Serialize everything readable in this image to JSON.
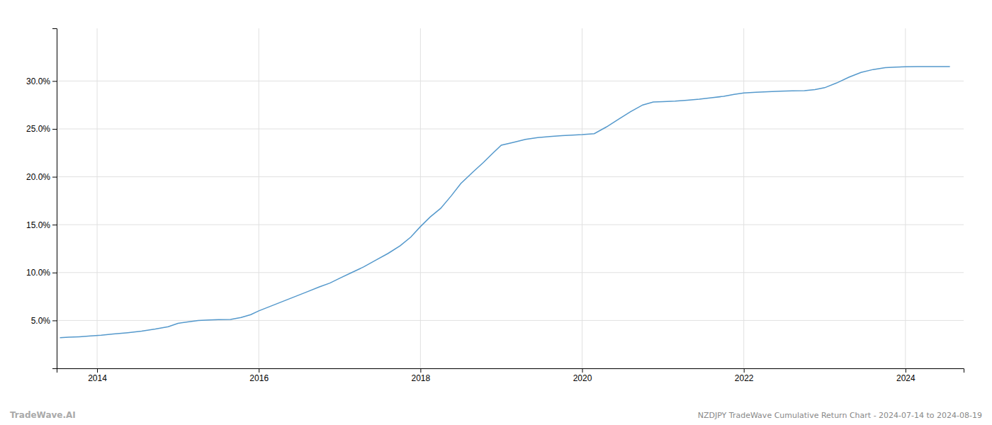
{
  "chart_data": {
    "type": "line",
    "title": "NZDJPY TradeWave Cumulative Return Chart - 2024-07-14 to 2024-08-19",
    "annotations": [
      "TradeWave.AI"
    ],
    "color": "#5599cc",
    "grid": true,
    "x": [
      2013.54,
      2013.65,
      2013.78,
      2013.92,
      2014.05,
      2014.2,
      2014.38,
      2014.55,
      2014.72,
      2014.88,
      2015.0,
      2015.12,
      2015.25,
      2015.38,
      2015.5,
      2015.65,
      2015.78,
      2015.9,
      2016.0,
      2016.15,
      2016.3,
      2016.45,
      2016.6,
      2016.75,
      2016.88,
      2017.0,
      2017.15,
      2017.3,
      2017.45,
      2017.6,
      2017.75,
      2017.88,
      2018.0,
      2018.12,
      2018.25,
      2018.38,
      2018.5,
      2018.65,
      2018.78,
      2018.9,
      2019.0,
      2019.15,
      2019.3,
      2019.45,
      2019.6,
      2019.75,
      2019.88,
      2020.0,
      2020.15,
      2020.3,
      2020.45,
      2020.6,
      2020.75,
      2020.88,
      2021.0,
      2021.15,
      2021.3,
      2021.45,
      2021.6,
      2021.75,
      2021.88,
      2022.0,
      2022.15,
      2022.3,
      2022.45,
      2022.6,
      2022.75,
      2022.88,
      2023.0,
      2023.15,
      2023.3,
      2023.45,
      2023.6,
      2023.75,
      2023.88,
      2024.0,
      2024.15,
      2024.3,
      2024.45,
      2024.55
    ],
    "values": [
      3.2,
      3.25,
      3.3,
      3.38,
      3.45,
      3.58,
      3.72,
      3.88,
      4.1,
      4.35,
      4.7,
      4.85,
      5.0,
      5.05,
      5.08,
      5.1,
      5.3,
      5.6,
      6.0,
      6.5,
      7.0,
      7.5,
      8.0,
      8.5,
      8.9,
      9.4,
      10.0,
      10.6,
      11.3,
      12.0,
      12.8,
      13.7,
      14.8,
      15.8,
      16.7,
      18.0,
      19.3,
      20.5,
      21.5,
      22.5,
      23.3,
      23.6,
      23.9,
      24.1,
      24.2,
      24.3,
      24.35,
      24.4,
      24.5,
      25.2,
      26.0,
      26.8,
      27.5,
      27.8,
      27.85,
      27.9,
      28.0,
      28.1,
      28.25,
      28.4,
      28.6,
      28.75,
      28.82,
      28.88,
      28.93,
      28.97,
      29.0,
      29.1,
      29.3,
      29.8,
      30.4,
      30.9,
      31.2,
      31.4,
      31.45,
      31.48,
      31.5,
      31.5,
      31.5,
      31.5
    ],
    "xlim": [
      2013.5,
      2024.72
    ],
    "ylim": [
      0.0,
      35.5
    ],
    "xticks": [
      2014,
      2016,
      2018,
      2020,
      2022,
      2024
    ],
    "yticks": [
      {
        "value": 5.0,
        "label": "5.0%"
      },
      {
        "value": 10.0,
        "label": "10.0%"
      },
      {
        "value": 15.0,
        "label": "15.0%"
      },
      {
        "value": 20.0,
        "label": "20.0%"
      },
      {
        "value": 25.0,
        "label": "25.0%"
      },
      {
        "value": 30.0,
        "label": "30.0%"
      }
    ]
  }
}
